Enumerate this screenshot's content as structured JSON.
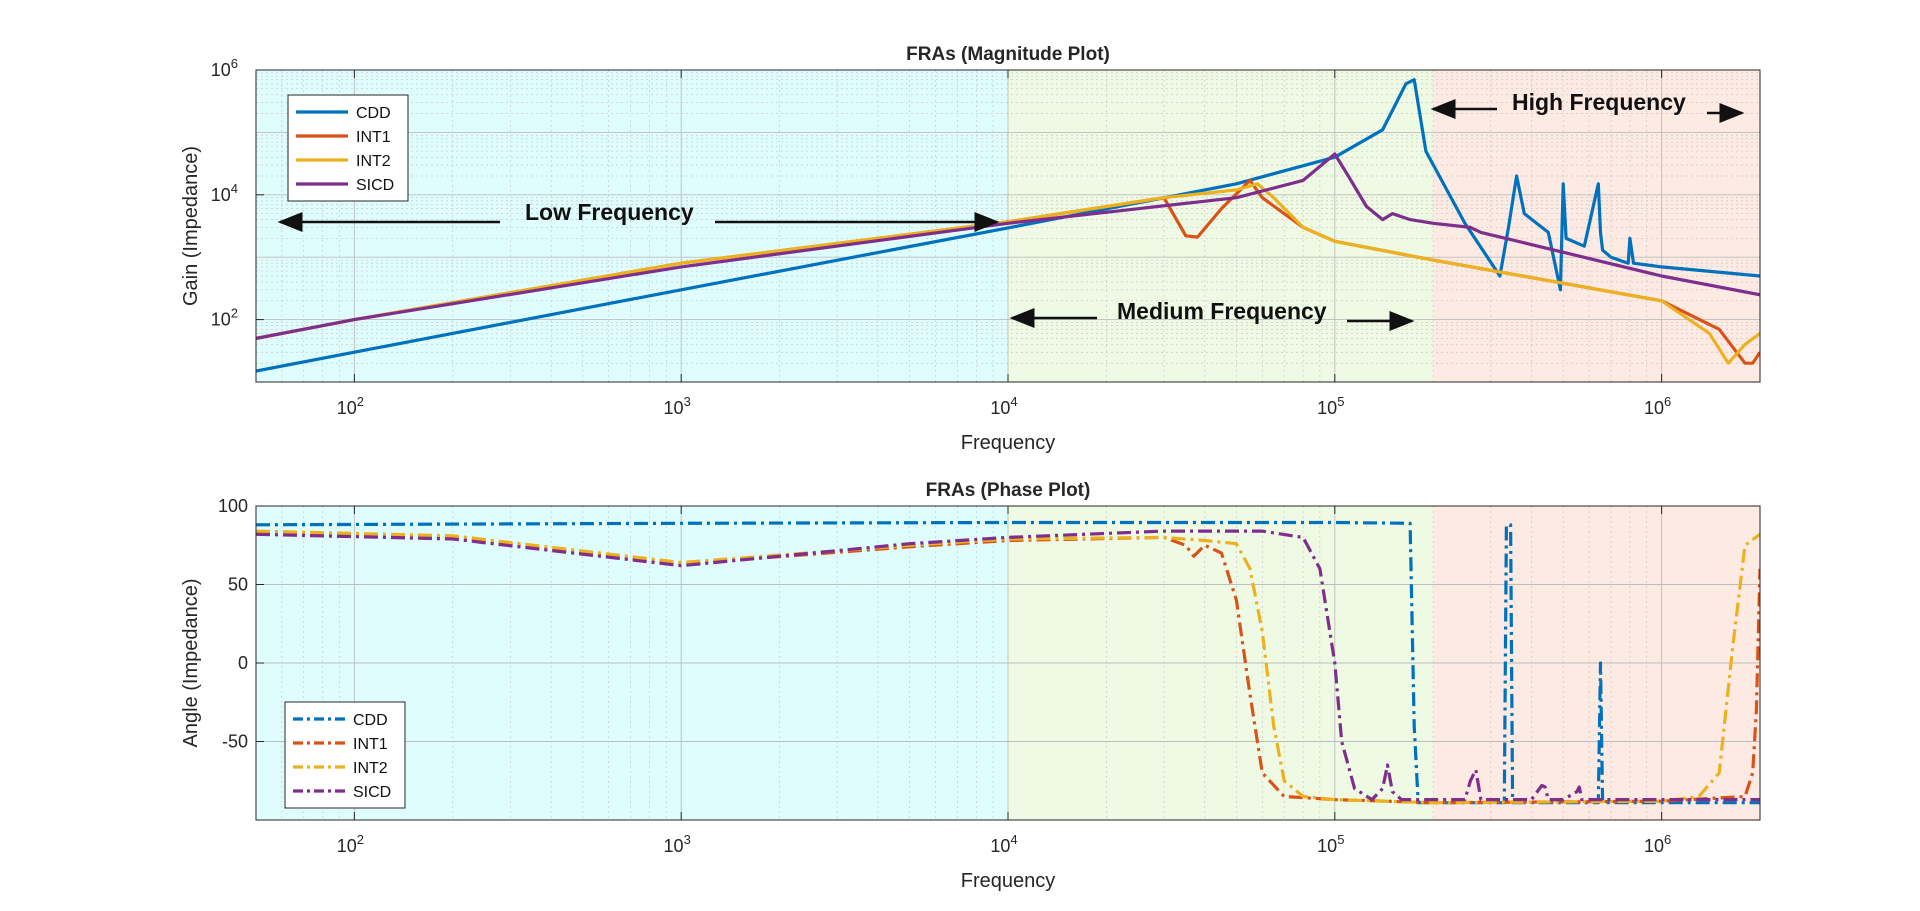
{
  "chart_data": [
    {
      "type": "line",
      "title": "FRAs (Magnitude Plot)",
      "xlabel": "Frequency",
      "ylabel": "Gain (Impedance)",
      "xscale": "log",
      "yscale": "log",
      "xlim": [
        50,
        2000000
      ],
      "ylim": [
        10,
        1000000
      ],
      "xticks": [
        100,
        1000,
        10000,
        100000,
        1000000
      ],
      "yticks": [
        100,
        10000,
        1000000
      ],
      "grid": true,
      "legend_position": "top-left",
      "regions": [
        {
          "label": "Low Frequency",
          "x_range": [
            50,
            10000
          ],
          "color": "#e0fdfe"
        },
        {
          "label": "Medium Frequency",
          "x_range": [
            10000,
            200000
          ],
          "color": "#eefae3"
        },
        {
          "label": "High Frequency",
          "x_range": [
            200000,
            2000000
          ],
          "color": "#fdeae3"
        }
      ],
      "series": [
        {
          "name": "CDD",
          "color": "#0072bd",
          "style": "solid",
          "x": [
            50,
            100,
            1000,
            10000,
            50000,
            100000,
            140000,
            165000,
            175000,
            190000,
            250000,
            320000,
            340000,
            360000,
            380000,
            450000,
            490000,
            500000,
            510000,
            580000,
            640000,
            650000,
            660000,
            700000,
            790000,
            800000,
            820000,
            1000000,
            2000000
          ],
          "y": [
            15,
            30,
            300,
            2950,
            15000,
            40000,
            110000,
            600000,
            700000,
            50000,
            3500,
            500,
            3000,
            20000,
            5000,
            2500,
            300,
            15000,
            2000,
            1500,
            15000,
            2500,
            1300,
            1000,
            800,
            2000,
            800,
            700,
            500
          ]
        },
        {
          "name": "INT1",
          "color": "#d95319",
          "style": "solid",
          "x": [
            50,
            100,
            1000,
            10000,
            30000,
            35000,
            38000,
            45000,
            55000,
            60000,
            80000,
            100000,
            200000,
            1000000,
            1500000,
            1800000,
            1900000,
            2000000
          ],
          "y": [
            50,
            100,
            800,
            3700,
            9000,
            2200,
            2100,
            6000,
            17000,
            9000,
            3000,
            1800,
            900,
            200,
            70,
            20,
            20,
            30
          ]
        },
        {
          "name": "INT2",
          "color": "#edb120",
          "style": "solid",
          "x": [
            50,
            100,
            1000,
            10000,
            30000,
            50000,
            58000,
            65000,
            80000,
            100000,
            200000,
            1000000,
            1400000,
            1600000,
            1800000,
            2000000
          ],
          "y": [
            50,
            100,
            800,
            3700,
            9000,
            12000,
            15000,
            9000,
            3000,
            1800,
            900,
            200,
            60,
            20,
            40,
            60
          ]
        },
        {
          "name": "SICD",
          "color": "#7e2f8e",
          "style": "solid",
          "x": [
            50,
            100,
            1000,
            10000,
            50000,
            80000,
            100000,
            110000,
            125000,
            140000,
            150000,
            170000,
            200000,
            260000,
            280000,
            1000000,
            2000000
          ],
          "y": [
            50,
            100,
            700,
            3500,
            9000,
            17000,
            45000,
            20000,
            6500,
            4000,
            5000,
            4000,
            3500,
            3000,
            2500,
            500,
            250
          ]
        }
      ]
    },
    {
      "type": "line",
      "title": "FRAs (Phase Plot)",
      "xlabel": "Frequency",
      "ylabel": "Angle (Impedance)",
      "xscale": "log",
      "xlim": [
        50,
        2000000
      ],
      "ylim": [
        -100,
        100
      ],
      "xticks": [
        100,
        1000,
        10000,
        100000,
        1000000
      ],
      "yticks": [
        100,
        50,
        0,
        -50
      ],
      "grid": true,
      "legend_position": "bottom-left",
      "regions": [
        {
          "x_range": [
            50,
            10000
          ],
          "color": "#e0fdfe"
        },
        {
          "x_range": [
            10000,
            200000
          ],
          "color": "#eefae3"
        },
        {
          "x_range": [
            200000,
            2000000
          ],
          "color": "#fdeae3"
        }
      ],
      "series": [
        {
          "name": "CDD",
          "color": "#0072bd",
          "style": "dashdot",
          "x": [
            50,
            1000,
            10000,
            100000,
            170000,
            175000,
            180000,
            330000,
            335000,
            345000,
            350000,
            500000,
            640000,
            650000,
            660000,
            700000,
            2000000
          ],
          "y": [
            88,
            89,
            89.5,
            89.5,
            89,
            -40,
            -89,
            -89,
            88,
            88,
            -89,
            -89,
            -89,
            0,
            -89,
            -89,
            -89
          ]
        },
        {
          "name": "INT1",
          "color": "#d95319",
          "style": "dashdot",
          "x": [
            50,
            200,
            1000,
            5000,
            10000,
            30000,
            35000,
            37000,
            40000,
            45000,
            50000,
            55000,
            60000,
            70000,
            100000,
            200000,
            1000000,
            1800000,
            1900000,
            1950000,
            2000000
          ],
          "y": [
            83,
            80,
            63,
            74,
            78,
            80,
            75,
            68,
            75,
            70,
            40,
            -20,
            -70,
            -85,
            -87,
            -89,
            -88,
            -85,
            -70,
            -30,
            60
          ]
        },
        {
          "name": "INT2",
          "color": "#edb120",
          "style": "dashdot",
          "x": [
            50,
            200,
            1000,
            5000,
            10000,
            30000,
            40000,
            50000,
            55000,
            60000,
            65000,
            70000,
            80000,
            100000,
            200000,
            1000000,
            1300000,
            1500000,
            1650000,
            1800000,
            2000000
          ],
          "y": [
            84,
            81,
            64,
            75,
            79,
            80,
            78,
            76,
            60,
            20,
            -40,
            -75,
            -85,
            -87,
            -89,
            -88,
            -85,
            -70,
            10,
            75,
            82
          ]
        },
        {
          "name": "SICD",
          "color": "#7e2f8e",
          "style": "dashdot",
          "x": [
            50,
            200,
            1000,
            5000,
            10000,
            30000,
            60000,
            80000,
            90000,
            100000,
            105000,
            115000,
            130000,
            140000,
            145000,
            150000,
            160000,
            250000,
            260000,
            270000,
            280000,
            400000,
            430000,
            440000,
            450000,
            500000,
            550000,
            560000,
            570000,
            600000,
            2000000
          ],
          "y": [
            82,
            79,
            62,
            76,
            80,
            84,
            84,
            80,
            60,
            0,
            -50,
            -80,
            -87,
            -80,
            -65,
            -82,
            -87,
            -87,
            -75,
            -68,
            -87,
            -87,
            -78,
            -79,
            -87,
            -87,
            -82,
            -79,
            -87,
            -87,
            -87
          ]
        }
      ]
    }
  ]
}
